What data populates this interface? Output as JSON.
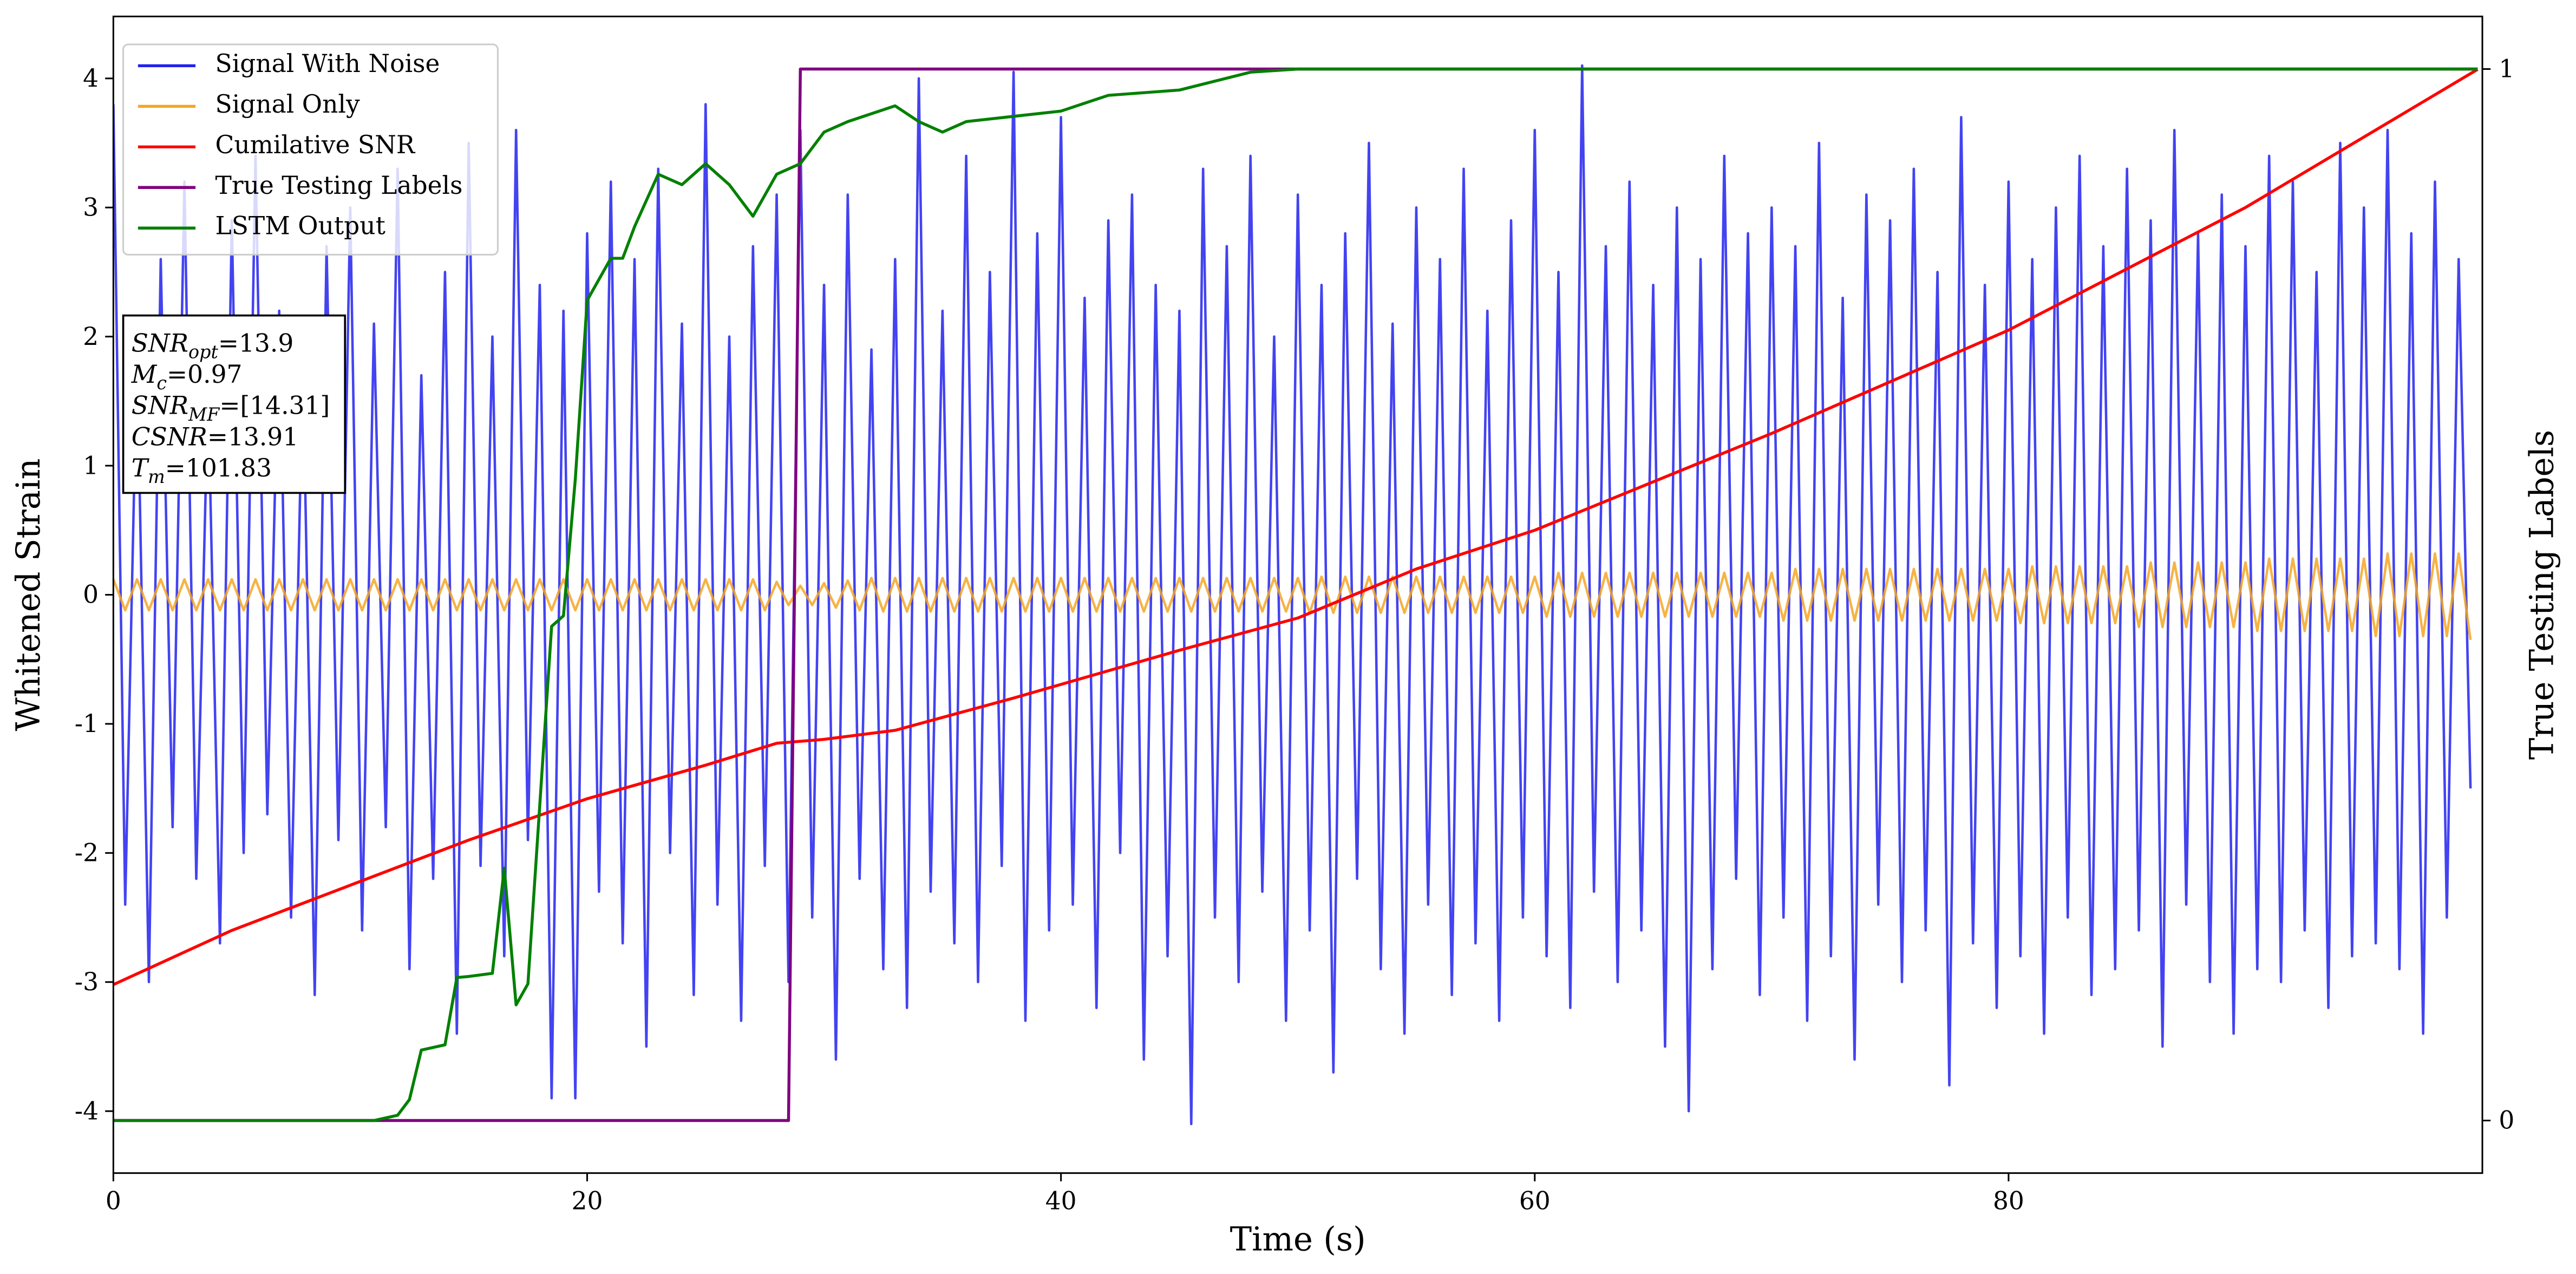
{
  "chart_data": {
    "type": "line",
    "xlabel": "Time (s)",
    "ylabel": "Whitened Strain",
    "y2label": "True Testing Labels",
    "xlim": [
      0,
      100
    ],
    "ylim": [
      -4.48,
      4.48
    ],
    "y2lim": [
      -0.05,
      1.05
    ],
    "xticks": [
      0,
      20,
      40,
      60,
      80
    ],
    "yticks": [
      -4,
      -3,
      -2,
      -1,
      0,
      1,
      2,
      3,
      4
    ],
    "y2ticks": [
      0,
      1
    ],
    "legend": "upper left",
    "grid": false,
    "x": [
      0,
      0.5,
      1,
      1.5,
      2,
      2.5,
      3,
      3.5,
      4,
      4.5,
      5,
      5.5,
      6,
      6.5,
      7,
      7.5,
      8,
      8.5,
      9,
      9.5,
      10,
      10.5,
      11,
      11.5,
      12,
      12.5,
      13,
      13.5,
      14,
      14.5,
      15,
      15.5,
      16,
      16.5,
      17,
      17.5,
      18,
      18.5,
      19,
      19.5,
      20,
      20.5,
      21,
      21.5,
      22,
      22.5,
      23,
      23.5,
      24,
      24.5,
      25,
      25.5,
      26,
      26.5,
      27,
      27.5,
      28,
      28.5,
      29,
      29.5,
      30,
      30.5,
      31,
      31.5,
      32,
      32.5,
      33,
      33.5,
      34,
      34.5,
      35,
      35.5,
      36,
      36.5,
      37,
      37.5,
      38,
      38.5,
      39,
      39.5,
      40,
      40.5,
      41,
      41.5,
      42,
      42.5,
      43,
      43.5,
      44,
      44.5,
      45,
      45.5,
      46,
      46.5,
      47,
      47.5,
      48,
      48.5,
      49,
      49.5,
      50,
      50.5,
      51,
      51.5,
      52,
      52.5,
      53,
      53.5,
      54,
      54.5,
      55,
      55.5,
      56,
      56.5,
      57,
      57.5,
      58,
      58.5,
      59,
      59.5,
      60,
      60.5,
      61,
      61.5,
      62,
      62.5,
      63,
      63.5,
      64,
      64.5,
      65,
      65.5,
      66,
      66.5,
      67,
      67.5,
      68,
      68.5,
      69,
      69.5,
      70,
      70.5,
      71,
      71.5,
      72,
      72.5,
      73,
      73.5,
      74,
      74.5,
      75,
      75.5,
      76,
      76.5,
      77,
      77.5,
      78,
      78.5,
      79,
      79.5,
      80,
      80.5,
      81,
      81.5,
      82,
      82.5,
      83,
      83.5,
      84,
      84.5,
      85,
      85.5,
      86,
      86.5,
      87,
      87.5,
      88,
      88.5,
      89,
      89.5,
      90,
      90.5,
      91,
      91.5,
      92,
      92.5,
      93,
      93.5,
      94,
      94.5,
      95,
      95.5,
      96,
      96.5,
      97,
      97.5,
      98,
      98.5,
      99,
      99.5
    ],
    "series": [
      {
        "name": "Signal With Noise",
        "color": "#2222ee",
        "values": [
          3.8,
          -2.4,
          1.9,
          -3.0,
          2.6,
          -1.8,
          3.2,
          -2.2,
          1.6,
          -2.7,
          2.9,
          -2.0,
          3.4,
          -1.7,
          2.2,
          -2.5,
          1.8,
          -3.1,
          2.7,
          -1.9,
          3.0,
          -2.6,
          2.1,
          -1.8,
          3.3,
          -2.9,
          1.7,
          -2.2,
          2.5,
          -3.4,
          3.5,
          -2.1,
          2.0,
          -2.8,
          3.6,
          -1.9,
          2.4,
          -3.9,
          2.2,
          -3.9,
          2.8,
          -2.3,
          3.2,
          -2.7,
          2.6,
          -3.5,
          3.3,
          -2.0,
          2.1,
          -3.1,
          3.8,
          -2.4,
          2.0,
          -3.3,
          2.7,
          -2.1,
          3.1,
          -3.0,
          3.6,
          -2.5,
          2.4,
          -3.6,
          3.1,
          -2.2,
          1.9,
          -2.9,
          2.6,
          -3.2,
          4.0,
          -2.3,
          2.2,
          -2.7,
          3.4,
          -3.0,
          2.5,
          -2.1,
          4.05,
          -3.3,
          2.8,
          -2.6,
          3.7,
          -2.4,
          2.3,
          -3.2,
          2.9,
          -2.0,
          3.1,
          -3.6,
          2.4,
          -2.8,
          2.2,
          -4.1,
          3.3,
          -2.5,
          2.7,
          -3.0,
          3.4,
          -2.3,
          2.0,
          -3.3,
          3.1,
          -2.6,
          2.4,
          -3.7,
          2.8,
          -2.2,
          3.5,
          -2.9,
          2.1,
          -3.4,
          3.0,
          -2.4,
          2.6,
          -3.1,
          3.3,
          -2.7,
          2.2,
          -3.3,
          2.9,
          -2.5,
          3.6,
          -2.8,
          2.5,
          -3.2,
          4.1,
          -2.3,
          2.7,
          -3.0,
          3.2,
          -2.6,
          2.4,
          -3.5,
          3.0,
          -4.0,
          2.6,
          -2.9,
          3.4,
          -2.2,
          2.8,
          -3.1,
          3.0,
          -2.5,
          2.7,
          -3.3,
          3.5,
          -2.8,
          2.3,
          -3.6,
          3.1,
          -2.4,
          2.9,
          -3.0,
          3.3,
          -2.6,
          2.5,
          -3.8,
          3.7,
          -2.7,
          2.4,
          -3.2,
          3.2,
          -2.8,
          2.6,
          -3.4,
          3.0,
          -2.5,
          3.4,
          -3.1,
          2.7,
          -2.9,
          3.3,
          -2.6,
          2.9,
          -3.5,
          3.6,
          -2.4,
          2.8,
          -3.0,
          3.1,
          -3.4,
          2.7,
          -2.9,
          3.4,
          -3.0,
          3.2,
          -2.6,
          2.5,
          -3.2,
          3.5,
          -2.8,
          3.0,
          -2.7,
          3.6,
          -2.9,
          2.8,
          -3.4,
          3.2,
          -2.5,
          2.6,
          -1.5
        ]
      },
      {
        "name": "Signal Only",
        "color": "#f5a623",
        "values": [
          0.12,
          -0.12,
          0.12,
          -0.12,
          0.12,
          -0.12,
          0.12,
          -0.12,
          0.12,
          -0.12,
          0.12,
          -0.12,
          0.12,
          -0.12,
          0.12,
          -0.12,
          0.12,
          -0.12,
          0.12,
          -0.12,
          0.12,
          -0.12,
          0.12,
          -0.12,
          0.12,
          -0.12,
          0.12,
          -0.12,
          0.12,
          -0.12,
          0.12,
          -0.12,
          0.12,
          -0.12,
          0.12,
          -0.12,
          0.12,
          -0.12,
          0.12,
          -0.12,
          0.12,
          -0.12,
          0.12,
          -0.12,
          0.12,
          -0.12,
          0.12,
          -0.12,
          0.12,
          -0.12,
          0.12,
          -0.12,
          0.12,
          -0.12,
          0.12,
          -0.12,
          0.1,
          -0.08,
          0.07,
          -0.08,
          0.09,
          -0.1,
          0.11,
          -0.12,
          0.13,
          -0.13,
          0.13,
          -0.13,
          0.13,
          -0.13,
          0.13,
          -0.13,
          0.13,
          -0.13,
          0.13,
          -0.13,
          0.13,
          -0.13,
          0.13,
          -0.13,
          0.13,
          -0.13,
          0.13,
          -0.13,
          0.13,
          -0.13,
          0.13,
          -0.13,
          0.13,
          -0.13,
          0.13,
          -0.13,
          0.13,
          -0.13,
          0.13,
          -0.13,
          0.13,
          -0.13,
          0.13,
          -0.13,
          0.13,
          -0.14,
          0.14,
          -0.14,
          0.14,
          -0.14,
          0.14,
          -0.14,
          0.14,
          -0.14,
          0.14,
          -0.14,
          0.14,
          -0.14,
          0.14,
          -0.14,
          0.14,
          -0.14,
          0.14,
          -0.14,
          0.14,
          -0.17,
          0.17,
          -0.17,
          0.17,
          -0.17,
          0.17,
          -0.17,
          0.17,
          -0.17,
          0.17,
          -0.17,
          0.17,
          -0.17,
          0.17,
          -0.17,
          0.17,
          -0.17,
          0.17,
          -0.17,
          0.17,
          -0.2,
          0.2,
          -0.2,
          0.2,
          -0.2,
          0.2,
          -0.2,
          0.2,
          -0.2,
          0.2,
          -0.2,
          0.2,
          -0.2,
          0.2,
          -0.2,
          0.2,
          -0.2,
          0.2,
          -0.2,
          0.2,
          -0.22,
          0.22,
          -0.22,
          0.22,
          -0.22,
          0.22,
          -0.22,
          0.22,
          -0.22,
          0.22,
          -0.25,
          0.25,
          -0.25,
          0.25,
          -0.25,
          0.25,
          -0.25,
          0.25,
          -0.25,
          0.25,
          -0.28,
          0.28,
          -0.28,
          0.28,
          -0.28,
          0.28,
          -0.28,
          0.28,
          -0.28,
          0.28,
          -0.32,
          0.32,
          -0.32,
          0.32,
          -0.32,
          0.32,
          -0.32,
          0.32,
          -0.35
        ]
      },
      {
        "name": "Cumilative SNR",
        "color": "#ff0000",
        "x": [
          0,
          5,
          10,
          15,
          20,
          25,
          28,
          30,
          33,
          38,
          45,
          50,
          55,
          60,
          70,
          80,
          90,
          99.8
        ],
        "values": [
          -3.02,
          -2.6,
          -2.25,
          -1.9,
          -1.58,
          -1.32,
          -1.15,
          -1.12,
          -1.05,
          -0.8,
          -0.43,
          -0.18,
          0.2,
          0.5,
          1.25,
          2.05,
          3.0,
          4.07
        ]
      },
      {
        "name": "True Testing Labels",
        "color": "#800080",
        "axis": "y2",
        "x": [
          0,
          28.5,
          29,
          99.8
        ],
        "values": [
          0,
          0,
          1,
          1
        ]
      },
      {
        "name": "LSTM Output",
        "color": "#008000",
        "axis": "y2",
        "x": [
          0,
          11,
          12,
          12.5,
          13,
          14,
          14.5,
          15,
          16,
          16.5,
          17,
          17.5,
          18,
          18.5,
          19,
          19.5,
          20,
          21,
          21.5,
          22,
          23,
          24,
          25,
          26,
          27,
          28,
          29,
          30,
          31,
          33,
          34,
          35,
          36,
          38,
          40,
          42,
          45,
          48,
          50,
          99.8
        ],
        "values": [
          0,
          0,
          0.005,
          0.02,
          0.067,
          0.072,
          0.136,
          0.137,
          0.14,
          0.24,
          0.11,
          0.13,
          0.3,
          0.47,
          0.48,
          0.61,
          0.78,
          0.82,
          0.82,
          0.85,
          0.9,
          0.89,
          0.91,
          0.89,
          0.86,
          0.9,
          0.91,
          0.94,
          0.95,
          0.965,
          0.95,
          0.94,
          0.95,
          0.955,
          0.96,
          0.975,
          0.98,
          0.997,
          1.0,
          1.0
        ]
      }
    ],
    "annotation": [
      {
        "main": "SNR",
        "sub": "opt",
        "rest": "=13.9"
      },
      {
        "main": "M",
        "sub": "c",
        "rest": "=0.97"
      },
      {
        "main": "SNR",
        "sub": "MF",
        "rest": "=[14.31]"
      },
      {
        "main": "CSNR",
        "rest": "=13.91"
      },
      {
        "main": "T",
        "sub": "m",
        "rest": "=101.83"
      }
    ]
  }
}
